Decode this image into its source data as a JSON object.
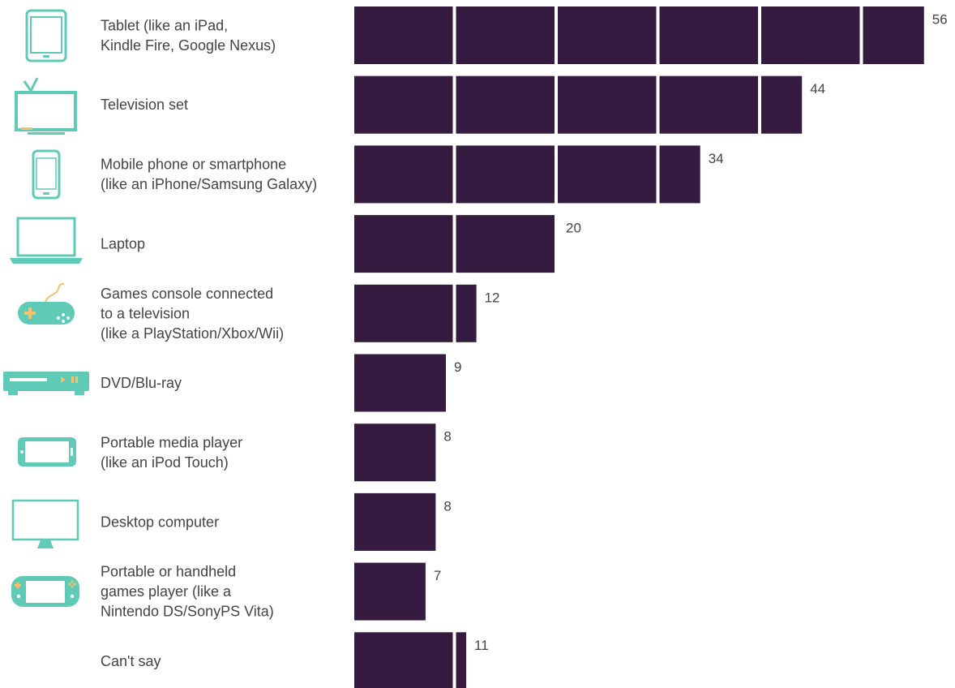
{
  "colors": {
    "bar": "#361b40",
    "icon": "#5fcbb7",
    "icon_accent": "#f5c16c",
    "text": "#444444"
  },
  "chart_data": {
    "type": "bar",
    "orientation": "horizontal",
    "title": "",
    "xlabel": "",
    "ylabel": "",
    "xlim": [
      0,
      56
    ],
    "grid": false,
    "categories": [
      {
        "lines": [
          "Tablet (like an iPad,",
          "Kindle Fire, Google Nexus)"
        ],
        "icon": "tablet-icon"
      },
      {
        "lines": [
          "Television set"
        ],
        "icon": "television-icon"
      },
      {
        "lines": [
          "Mobile phone or smartphone",
          "(like an iPhone/Samsung Galaxy)"
        ],
        "icon": "smartphone-icon"
      },
      {
        "lines": [
          "Laptop"
        ],
        "icon": "laptop-icon"
      },
      {
        "lines": [
          "Games console connected",
          "to a television",
          "(like a PlayStation/Xbox/Wii)"
        ],
        "icon": "game-controller-icon"
      },
      {
        "lines": [
          "DVD/Blu-ray"
        ],
        "icon": "dvd-player-icon"
      },
      {
        "lines": [
          "Portable media player",
          "(like an iPod Touch)"
        ],
        "icon": "media-player-icon"
      },
      {
        "lines": [
          "Desktop computer"
        ],
        "icon": "desktop-monitor-icon"
      },
      {
        "lines": [
          "Portable or handheld",
          "games player (like a",
          "Nintendo DS/SonyPS Vita)"
        ],
        "icon": "handheld-console-icon"
      },
      {
        "lines": [
          "Can't say"
        ],
        "icon": ""
      }
    ],
    "values": [
      56,
      44,
      34,
      20,
      12,
      9,
      8,
      8,
      7,
      11
    ],
    "value_labels": [
      "56",
      "44",
      "34",
      "20",
      "12",
      "9",
      "8",
      "8",
      "7",
      "11"
    ],
    "segment_size": 10
  }
}
